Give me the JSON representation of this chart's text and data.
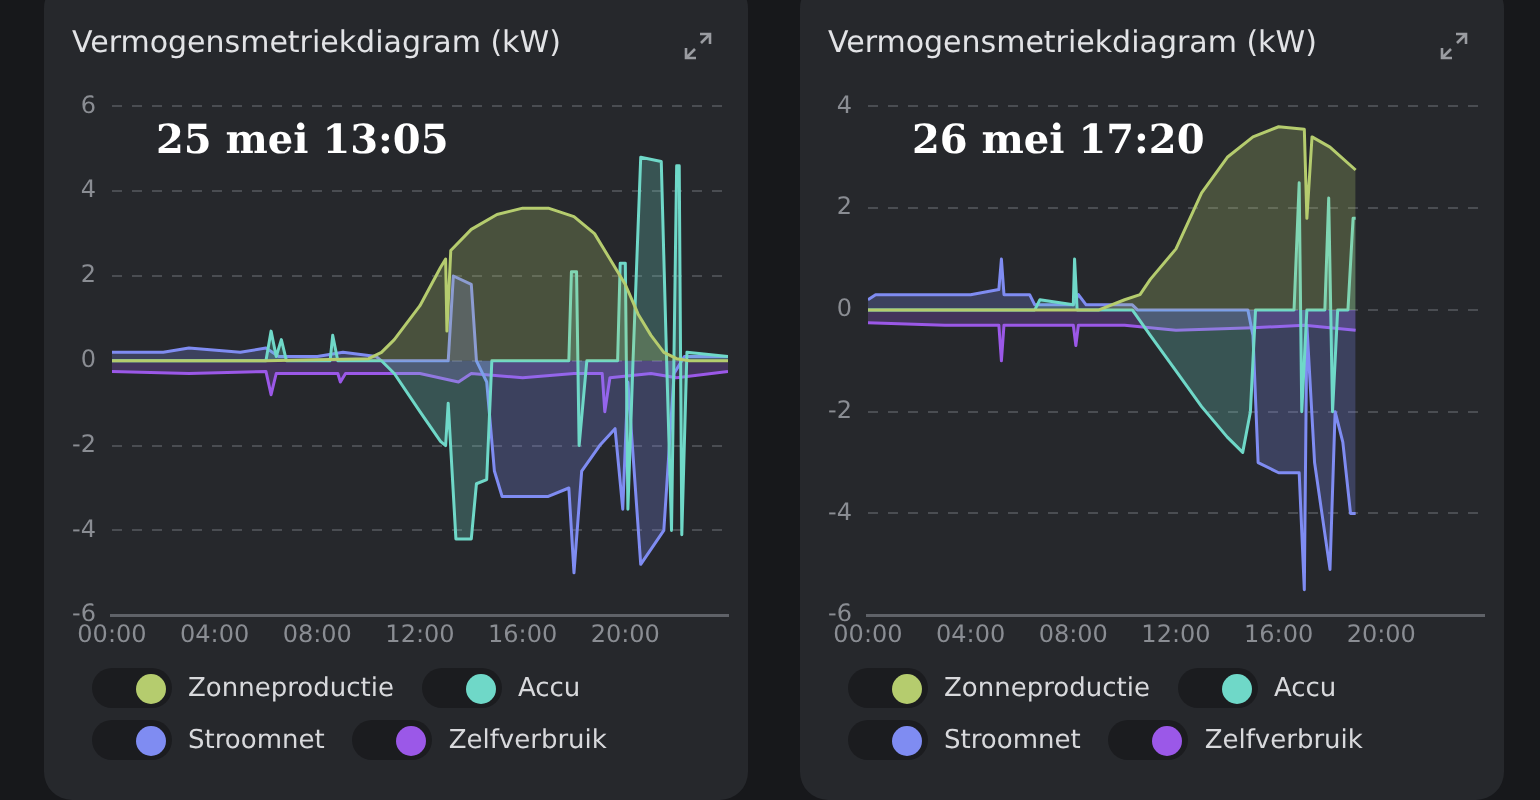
{
  "chart_data": [
    {
      "type": "area",
      "title": "Vermogensmetriekdiagram (kW)",
      "annotations": [
        "25 mei 13:05"
      ],
      "xlim": [
        0,
        24
      ],
      "xticks": [
        {
          "value": 0,
          "label": "00:00"
        },
        {
          "value": 4,
          "label": "04:00"
        },
        {
          "value": 8,
          "label": "08:00"
        },
        {
          "value": 12,
          "label": "12:00"
        },
        {
          "value": 16,
          "label": "16:00"
        },
        {
          "value": 20,
          "label": "20:00"
        }
      ],
      "ylim": [
        -6,
        6
      ],
      "yticks": [
        -6,
        -4,
        -2,
        0,
        2,
        4,
        6
      ],
      "grid": "y",
      "legend": "bottom",
      "series": [
        {
          "name": "Zonneproductie",
          "color": "#b5cc6e",
          "x": [
            0,
            6,
            10,
            10.5,
            11,
            12,
            12.8,
            13,
            13.05,
            13.2,
            14,
            15,
            16,
            17,
            18,
            18.8,
            19.5,
            20,
            20.5,
            21,
            21.5,
            22,
            22.5,
            24
          ],
          "values": [
            0,
            0,
            0.05,
            0.2,
            0.5,
            1.3,
            2.2,
            2.4,
            0.7,
            2.6,
            3.1,
            3.45,
            3.6,
            3.6,
            3.4,
            3.0,
            2.3,
            1.8,
            1.1,
            0.6,
            0.2,
            0.05,
            0,
            0
          ]
        },
        {
          "name": "Accu",
          "color": "#6fd8c8",
          "x": [
            0,
            6,
            6.2,
            6.4,
            6.6,
            6.8,
            8.5,
            8.6,
            8.8,
            10.5,
            11,
            12,
            12.8,
            13,
            13.1,
            13.4,
            14,
            14.2,
            14.6,
            14.8,
            17.8,
            17.9,
            18.1,
            18.2,
            18.5,
            19.7,
            19.8,
            20,
            20.1,
            20.3,
            20.6,
            21.4,
            21.6,
            21.8,
            22,
            22.1,
            22.2,
            22.4,
            24
          ],
          "values": [
            0,
            0,
            0.7,
            0.1,
            0.5,
            0,
            0,
            0.6,
            0,
            0,
            -0.3,
            -1.2,
            -1.9,
            -2.0,
            -1.0,
            -4.2,
            -4.2,
            -2.9,
            -2.8,
            0,
            0,
            2.1,
            2.1,
            -2.0,
            0,
            0,
            2.3,
            2.3,
            -3.5,
            0,
            4.8,
            4.7,
            0.2,
            -4.0,
            4.6,
            4.6,
            -4.1,
            0.2,
            0.1
          ]
        },
        {
          "name": "Stroomnet",
          "color": "#7f8cf2",
          "x": [
            0,
            2,
            3,
            5,
            6,
            6.5,
            8,
            9,
            10.3,
            10.5,
            13.1,
            13.3,
            14,
            14.2,
            14.6,
            14.9,
            15.2,
            17,
            17.8,
            18,
            18.3,
            19,
            19.6,
            19.9,
            20.1,
            20.6,
            21.5,
            21.9,
            22.3,
            24
          ],
          "values": [
            0.2,
            0.2,
            0.3,
            0.2,
            0.3,
            0.1,
            0.1,
            0.2,
            0.1,
            0,
            0,
            2.0,
            1.8,
            0,
            -0.5,
            -2.6,
            -3.2,
            -3.2,
            -3.0,
            -5.0,
            -2.6,
            -2.0,
            -1.6,
            -3.5,
            -0.5,
            -4.8,
            -4.0,
            -0.3,
            0.1,
            0.1
          ]
        },
        {
          "name": "Zelfverbruik",
          "color": "#9b58e8",
          "x": [
            0,
            3,
            6,
            6.2,
            6.4,
            8.8,
            8.9,
            9.1,
            12,
            13.5,
            14,
            16,
            18,
            19.1,
            19.2,
            19.4,
            21,
            22,
            24
          ],
          "values": [
            -0.25,
            -0.3,
            -0.25,
            -0.8,
            -0.3,
            -0.3,
            -0.5,
            -0.3,
            -0.3,
            -0.5,
            -0.3,
            -0.4,
            -0.3,
            -0.3,
            -1.2,
            -0.4,
            -0.3,
            -0.4,
            -0.25
          ]
        }
      ]
    },
    {
      "type": "area",
      "title": "Vermogensmetriekdiagram (kW)",
      "annotations": [
        "26 mei 17:20"
      ],
      "xlim": [
        0,
        24
      ],
      "xticks": [
        {
          "value": 0,
          "label": "00:00"
        },
        {
          "value": 4,
          "label": "04:00"
        },
        {
          "value": 8,
          "label": "08:00"
        },
        {
          "value": 12,
          "label": "12:00"
        },
        {
          "value": 16,
          "label": "16:00"
        },
        {
          "value": 20,
          "label": "20:00"
        }
      ],
      "ylim": [
        -6,
        4
      ],
      "yticks": [
        -6,
        -4,
        -2,
        0,
        2,
        4
      ],
      "grid": "y",
      "legend": "bottom",
      "series": [
        {
          "name": "Zonneproductie",
          "color": "#b5cc6e",
          "x": [
            0,
            9,
            10,
            10.6,
            11,
            12,
            13,
            14,
            15,
            16,
            17,
            17.1,
            17.3,
            18,
            19
          ],
          "values": [
            0,
            0,
            0.2,
            0.3,
            0.6,
            1.2,
            2.3,
            3.0,
            3.4,
            3.6,
            3.55,
            1.8,
            3.4,
            3.2,
            2.75
          ]
        },
        {
          "name": "Accu",
          "color": "#6fd8c8",
          "x": [
            0,
            6.5,
            6.7,
            8,
            8.05,
            8.15,
            10.3,
            11,
            12,
            13,
            14,
            14.6,
            14.9,
            15.1,
            16.6,
            16.8,
            16.9,
            17.1,
            17.8,
            17.95,
            18.1,
            18.3,
            18.7,
            18.9,
            19
          ],
          "values": [
            0,
            0,
            0.2,
            0.1,
            1.0,
            0,
            0,
            -0.5,
            -1.2,
            -1.9,
            -2.5,
            -2.8,
            -2.0,
            0,
            0,
            2.5,
            -2.0,
            0,
            0,
            2.2,
            -2.0,
            0,
            0,
            1.8,
            1.8
          ]
        },
        {
          "name": "Stroomnet",
          "color": "#7f8cf2",
          "x": [
            0,
            0.3,
            2,
            4,
            5.1,
            5.2,
            5.3,
            6.3,
            6.5,
            8,
            8.2,
            8.5,
            10.3,
            10.5,
            14.8,
            15,
            15.2,
            16,
            16.8,
            17,
            17.1,
            17.4,
            18,
            18.2,
            18.5,
            18.8,
            19
          ],
          "values": [
            0.2,
            0.3,
            0.3,
            0.3,
            0.4,
            1.0,
            0.3,
            0.3,
            0.1,
            0.1,
            0.3,
            0.1,
            0.1,
            0,
            0,
            -0.5,
            -3.0,
            -3.2,
            -3.2,
            -5.5,
            -0.3,
            -3.0,
            -5.1,
            -2.0,
            -2.6,
            -4.0,
            -4.0
          ]
        },
        {
          "name": "Zelfverbruik",
          "color": "#9b58e8",
          "x": [
            0,
            3,
            5.1,
            5.2,
            5.3,
            8,
            8.1,
            8.2,
            10,
            12,
            15,
            17,
            18,
            19
          ],
          "values": [
            -0.25,
            -0.3,
            -0.3,
            -1.0,
            -0.3,
            -0.3,
            -0.7,
            -0.3,
            -0.3,
            -0.4,
            -0.35,
            -0.3,
            -0.35,
            -0.4
          ]
        }
      ]
    }
  ]
}
